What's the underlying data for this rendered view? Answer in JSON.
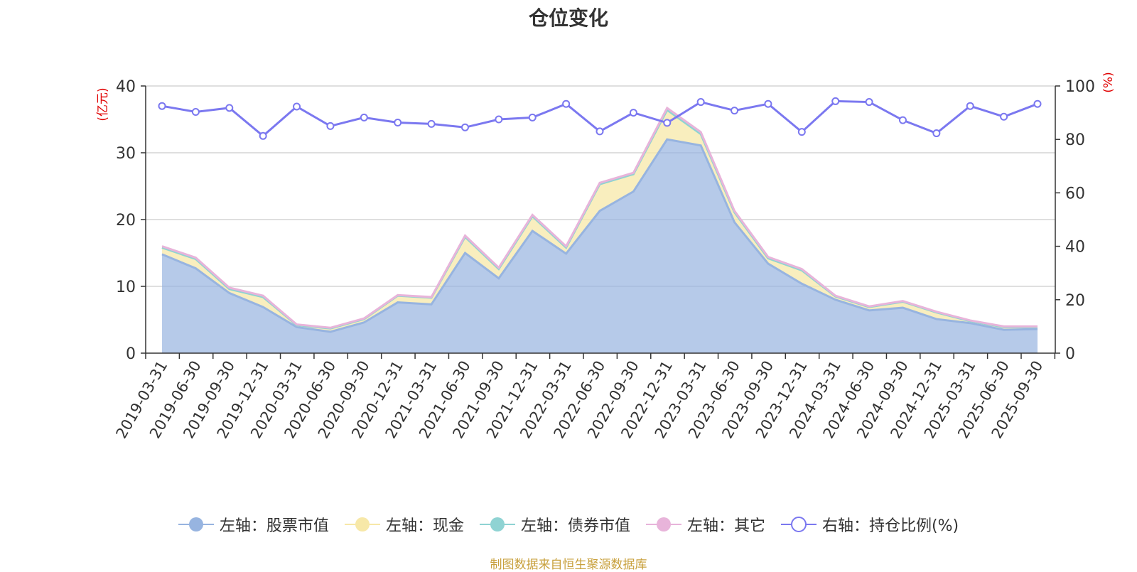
{
  "chart_data": {
    "type": "area",
    "title": "仓位变化",
    "ylabel_left": "(亿元)",
    "ylabel_right": "(%)",
    "ylim_left": [
      0,
      40
    ],
    "ylim_right": [
      0,
      100
    ],
    "yticks_left": [
      0,
      10,
      20,
      30,
      40
    ],
    "yticks_right": [
      0,
      20,
      40,
      60,
      80,
      100
    ],
    "categories": [
      "2019-03-31",
      "2019-06-30",
      "2019-09-30",
      "2019-12-31",
      "2020-03-31",
      "2020-06-30",
      "2020-09-30",
      "2020-12-31",
      "2021-03-31",
      "2021-06-30",
      "2021-09-30",
      "2021-12-31",
      "2022-03-31",
      "2022-06-30",
      "2022-09-30",
      "2022-12-31",
      "2023-03-31",
      "2023-06-30",
      "2023-09-30",
      "2023-12-31",
      "2024-03-31",
      "2024-06-30",
      "2024-09-30",
      "2024-12-31",
      "2025-03-31",
      "2025-06-30",
      "2025-09-30"
    ],
    "series": [
      {
        "name": "左轴：股票市值",
        "axis": "left",
        "color": "#97b4e0",
        "values": [
          14.8,
          12.7,
          9.0,
          6.9,
          3.9,
          3.2,
          4.6,
          7.6,
          7.3,
          15.0,
          11.2,
          18.3,
          14.9,
          21.3,
          24.2,
          32.0,
          31.1,
          19.6,
          13.4,
          10.4,
          8.0,
          6.4,
          6.8,
          5.1,
          4.5,
          3.5,
          3.6
        ]
      },
      {
        "name": "左轴：现金",
        "axis": "left",
        "color": "#f7e8a8",
        "values": [
          1.0,
          1.4,
          0.6,
          1.5,
          0.3,
          0.5,
          0.5,
          1.0,
          1.0,
          2.4,
          1.4,
          2.2,
          0.9,
          4.0,
          2.6,
          4.4,
          1.7,
          1.5,
          0.8,
          2.0,
          0.5,
          0.5,
          0.9,
          1.0,
          0.3,
          0.4,
          0.3
        ]
      },
      {
        "name": "左轴：债券市值",
        "axis": "left",
        "color": "#8fd3d3",
        "values": [
          0,
          0,
          0,
          0,
          0,
          0,
          0,
          0,
          0,
          0,
          0,
          0,
          0,
          0,
          0,
          0,
          0,
          0,
          0,
          0,
          0,
          0,
          0,
          0,
          0,
          0,
          0
        ]
      },
      {
        "name": "左轴：其它",
        "axis": "left",
        "color": "#e8b4da",
        "values": [
          0.2,
          0.2,
          0.2,
          0.2,
          0.1,
          0.1,
          0.1,
          0.1,
          0.1,
          0.2,
          0.2,
          0.2,
          0.2,
          0.2,
          0.2,
          0.3,
          0.3,
          0.2,
          0.2,
          0.2,
          0.1,
          0.1,
          0.1,
          0.1,
          0.1,
          0.1,
          0.1
        ]
      },
      {
        "name": "右轴：持仓比例(%)",
        "axis": "right",
        "color": "#7b78f0",
        "values": [
          92.5,
          90.3,
          91.8,
          81.3,
          92.3,
          85.0,
          88.2,
          86.3,
          85.8,
          84.5,
          87.5,
          88.2,
          93.3,
          83.0,
          90.0,
          86.2,
          94.0,
          90.8,
          93.3,
          82.8,
          94.3,
          94.0,
          87.2,
          82.3,
          92.5,
          88.5,
          93.3
        ]
      }
    ],
    "legend_position": "bottom-center",
    "grid": true
  },
  "footer": "制图数据来自恒生聚源数据库"
}
